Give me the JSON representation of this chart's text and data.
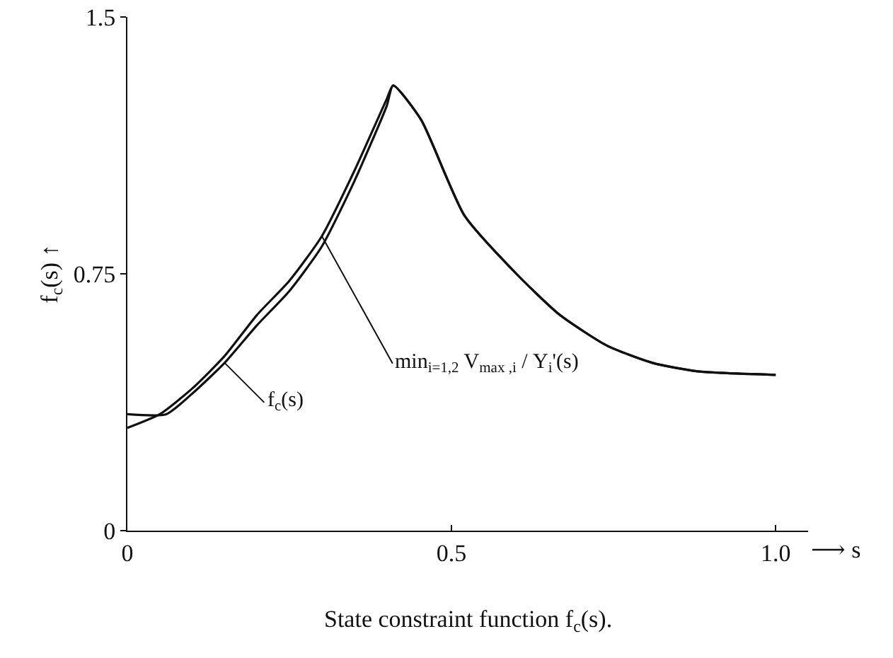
{
  "chart_data": {
    "type": "line",
    "annotations": [
      "State constraint function f$_{c}$(s)."
    ],
    "xlabel": "⟶ s",
    "ylabel": "f$_{c}$(s) ↑",
    "xlim": [
      0,
      1.05
    ],
    "ylim": [
      0,
      1.5
    ],
    "xticks": [
      0,
      0.5,
      {
        "value": 1,
        "label": "1.0"
      }
    ],
    "yticks": [
      0,
      0.75,
      1.5
    ],
    "grid": false,
    "legend": false,
    "marker": "none",
    "line_style": "solid",
    "series": [
      {
        "name": "min$_{i=1,2}$ V$_{max ,i}$ / Υ$_{i}$'(s)",
        "color": "#111111",
        "x": [
          0,
          0.05,
          0.1,
          0.15,
          0.2,
          0.25,
          0.3,
          0.35,
          0.4,
          0.41,
          0.453,
          0.52,
          0.6,
          0.667,
          0.74,
          0.81,
          0.88,
          1.0
        ],
        "values": [
          0.3,
          0.34,
          0.415,
          0.51,
          0.63,
          0.73,
          0.86,
          1.05,
          1.26,
          1.3,
          1.2,
          0.92,
          0.75,
          0.63,
          0.54,
          0.49,
          0.465,
          0.455
        ]
      },
      {
        "name": "f$_{c}$(s)",
        "color": "#111111",
        "x": [
          0,
          0.06,
          0.1,
          0.15,
          0.2,
          0.25,
          0.3,
          0.35,
          0.4,
          0.41,
          0.453,
          0.52,
          0.6,
          0.667,
          0.74,
          0.81,
          0.88,
          1.0
        ],
        "values": [
          0.34,
          0.34,
          0.4,
          0.49,
          0.6,
          0.7,
          0.83,
          1.02,
          1.24,
          1.3,
          1.2,
          0.92,
          0.75,
          0.63,
          0.54,
          0.49,
          0.465,
          0.455
        ]
      }
    ]
  }
}
